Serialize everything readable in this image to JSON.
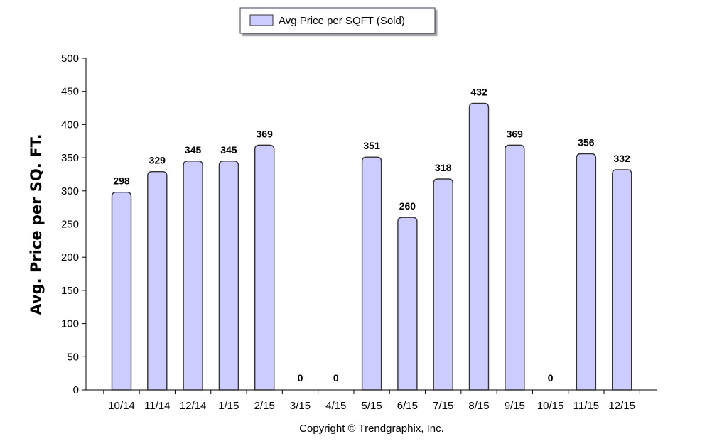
{
  "chart_data": {
    "type": "bar",
    "title": "",
    "xlabel": "",
    "ylabel": "Avg. Price per SQ. FT.",
    "ylim": [
      0,
      500
    ],
    "yticks": [
      0,
      50,
      100,
      150,
      200,
      250,
      300,
      350,
      400,
      450,
      500
    ],
    "categories": [
      "10/14",
      "11/14",
      "12/14",
      "1/15",
      "2/15",
      "3/15",
      "4/15",
      "5/15",
      "6/15",
      "7/15",
      "8/15",
      "9/15",
      "10/15",
      "11/15",
      "12/15"
    ],
    "series": [
      {
        "name": "Avg Price per SQFT (Sold)",
        "values": [
          298,
          329,
          345,
          345,
          369,
          0,
          0,
          351,
          260,
          318,
          432,
          369,
          0,
          356,
          332
        ],
        "color": "#ccccff",
        "stroke": "#333333"
      }
    ],
    "legend_position": "top-center",
    "grid": false,
    "copyright": "Copyright © Trendgraphix, Inc."
  }
}
